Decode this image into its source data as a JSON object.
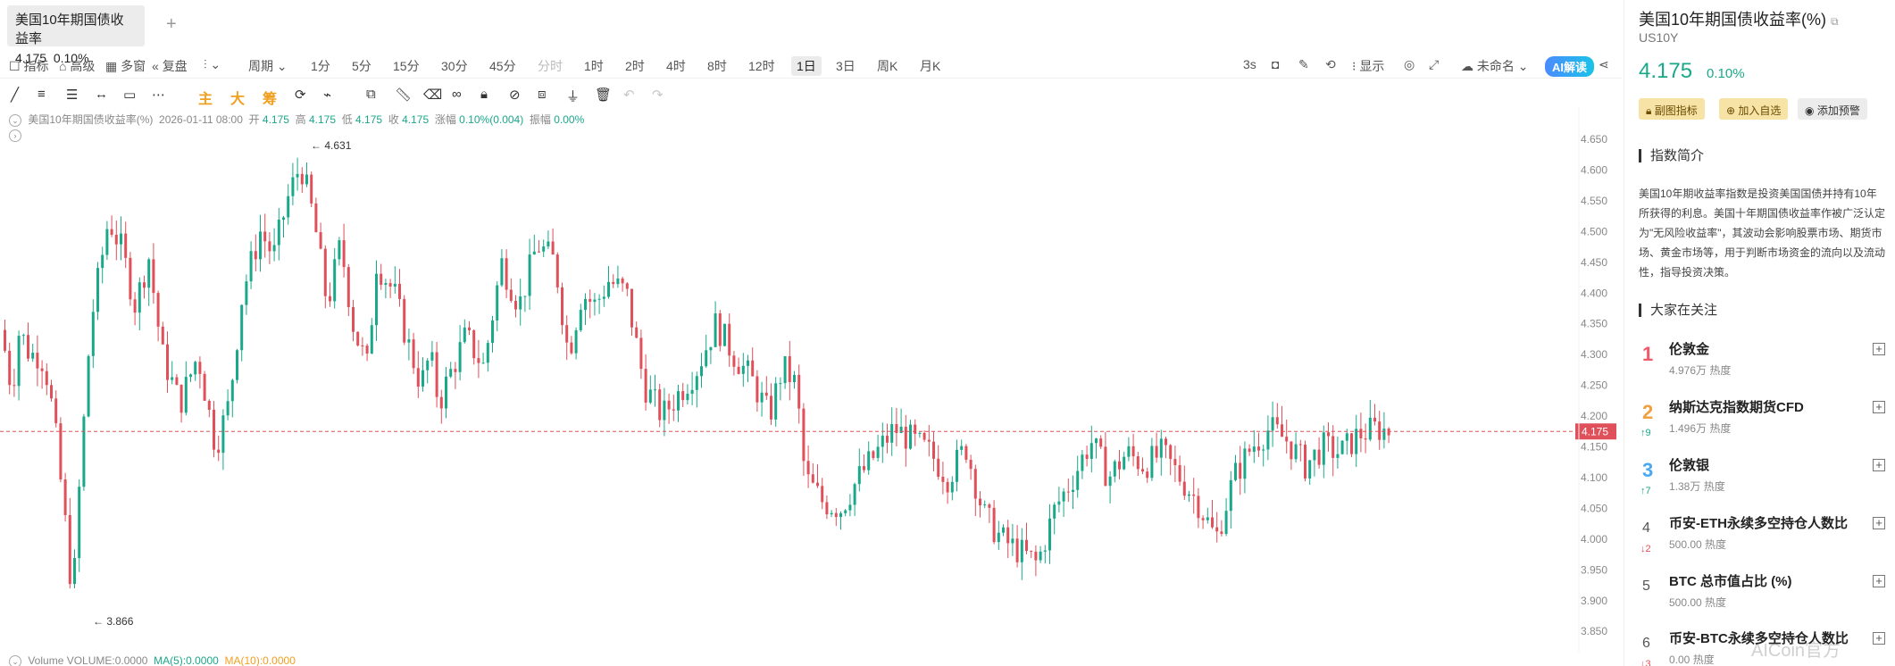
{
  "tab": {
    "title": "美国10年期国债收益率",
    "price": "4.175",
    "change": "0.10%",
    "add": "+"
  },
  "toolbar": {
    "left": [
      "指标",
      "高级",
      "多窗",
      "复盘"
    ],
    "period_label": "周期",
    "periods": [
      "1分",
      "5分",
      "15分",
      "30分",
      "45分",
      "分时",
      "1时",
      "2时",
      "4时",
      "8时",
      "12时",
      "1日",
      "3日",
      "周K",
      "月K"
    ],
    "active_period": "1日",
    "dim_period": "分时",
    "refresh": "3s",
    "display": "显示",
    "unnamed": "未命名",
    "ai": "AI解读"
  },
  "drawbar": {
    "main": "主",
    "big": "大",
    "chip": "筹"
  },
  "ohlc": {
    "name": "美国10年期国债收益率(%)",
    "date": "2026-01-11 08:00",
    "open_label": "开",
    "open": "4.175",
    "high_label": "高",
    "high": "4.175",
    "low_label": "低",
    "low": "4.175",
    "close_label": "收",
    "close": "4.175",
    "chg_label": "涨幅",
    "chg": "0.10%(0.004)",
    "amp_label": "振幅",
    "amp": "0.00%"
  },
  "volume": {
    "label": "Volume",
    "text": "VOLUME:0.0000",
    "ma5": "MA(5):0.0000",
    "ma10": "MA(10):0.0000"
  },
  "chart_data": {
    "type": "candlestick",
    "y_ticks": [
      "4.650",
      "4.600",
      "4.550",
      "4.500",
      "4.450",
      "4.400",
      "4.350",
      "4.300",
      "4.250",
      "4.200",
      "4.150",
      "4.100",
      "4.050",
      "4.000",
      "3.950",
      "3.900",
      "3.850"
    ],
    "ylim": [
      3.83,
      4.67
    ],
    "current_price": "4.175",
    "max_label": "4.631",
    "min_label": "3.866",
    "colors": {
      "up": "#1aa88a",
      "down": "#e0505a",
      "price_line": "#e0505a"
    }
  },
  "right": {
    "title": "美国10年期国债收益率(%)",
    "symbol": "US10Y",
    "price": "4.175",
    "change": "0.10%",
    "buttons": [
      "副图指标",
      "加入自选",
      "添加预警"
    ],
    "intro_title": "指数简介",
    "intro": "美国10年期收益率指数是投资美国国债并持有10年所获得的利息。美国十年期国债收益率作被广泛认定为\"无风险收益率\"，其波动会影响股票市场、期货市场、黄金市场等，用于判断市场资金的流向以及流动性，指导投资决策。",
    "hot_title": "大家在关注",
    "hot": [
      {
        "rank": "1",
        "move": "",
        "name": "伦敦金",
        "heat": "4.976万 热度"
      },
      {
        "rank": "2",
        "move": "↑9",
        "name": "纳斯达克指数期货CFD",
        "heat": "1.496万 热度"
      },
      {
        "rank": "3",
        "move": "↑7",
        "name": "伦敦银",
        "heat": "1.38万 热度"
      },
      {
        "rank": "4",
        "move": "↓2",
        "name": "币安-ETH永续多空持仓人数比",
        "heat": "500.00 热度"
      },
      {
        "rank": "5",
        "move": "",
        "name": "BTC 总市值占比 (%)",
        "heat": "500.00 热度"
      },
      {
        "rank": "6",
        "move": "↓3",
        "name": "币安-BTC永续多空持仓人数比",
        "heat": "0.00 热度"
      }
    ],
    "watermark": "AICoin官方"
  }
}
